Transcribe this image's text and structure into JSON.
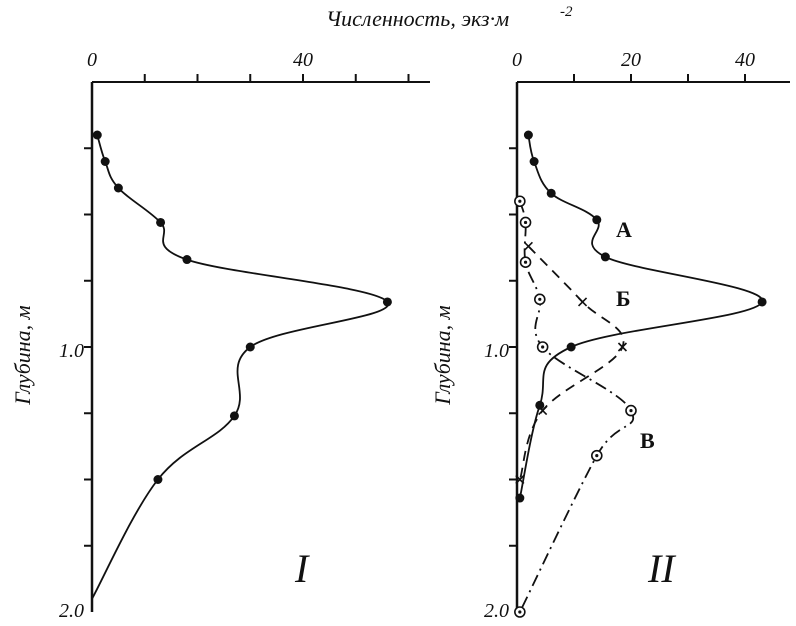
{
  "figure": {
    "top_label": "Численность, экз·м",
    "top_label_exponent": "-2",
    "ylabel": "Глубина, м"
  },
  "chart_data": [
    {
      "type": "line",
      "panel_label": "I",
      "xlabel": "Численность, экз·м-2",
      "ylabel": "Глубина, м",
      "xlim": [
        0,
        60
      ],
      "ylim": [
        0,
        2.0
      ],
      "x_ticks": [
        "0",
        "40"
      ],
      "y_ticks": [
        "1.0",
        "2.0"
      ],
      "series": [
        {
          "marker": "dot",
          "line": "solid",
          "points": [
            {
              "x": 1,
              "y": 0.2
            },
            {
              "x": 2.5,
              "y": 0.3
            },
            {
              "x": 5,
              "y": 0.4
            },
            {
              "x": 13,
              "y": 0.53
            },
            {
              "x": 18,
              "y": 0.67
            },
            {
              "x": 56,
              "y": 0.83
            },
            {
              "x": 30,
              "y": 1.0
            },
            {
              "x": 27,
              "y": 1.26
            },
            {
              "x": 12.5,
              "y": 1.5
            }
          ],
          "tail_end": {
            "x": 0,
            "y": 1.95
          }
        }
      ]
    },
    {
      "type": "line",
      "panel_label": "II",
      "xlabel": "Численность, экз·м-2",
      "ylabel": "Глубина, м",
      "xlim": [
        0,
        50
      ],
      "ylim": [
        0,
        2.0
      ],
      "x_ticks": [
        "0",
        "20",
        "40"
      ],
      "y_ticks": [
        "1.0",
        "2.0"
      ],
      "series": [
        {
          "name": "А",
          "marker": "dot",
          "line": "solid",
          "points": [
            {
              "x": 2,
              "y": 0.2
            },
            {
              "x": 3,
              "y": 0.3
            },
            {
              "x": 6,
              "y": 0.42
            },
            {
              "x": 14,
              "y": 0.52
            },
            {
              "x": 15.5,
              "y": 0.66
            },
            {
              "x": 43,
              "y": 0.83
            },
            {
              "x": 9.5,
              "y": 1.0
            },
            {
              "x": 4,
              "y": 1.22
            },
            {
              "x": 0.5,
              "y": 1.57
            }
          ]
        },
        {
          "name": "Б",
          "marker": "cross",
          "line": "dashed",
          "points": [
            {
              "x": 2,
              "y": 0.62
            },
            {
              "x": 11.5,
              "y": 0.83
            },
            {
              "x": 18.5,
              "y": 1.0
            },
            {
              "x": 4.5,
              "y": 1.24
            },
            {
              "x": 0.5,
              "y": 1.5
            }
          ]
        },
        {
          "name": "В",
          "marker": "circle-dot",
          "line": "dash-dot",
          "points": [
            {
              "x": 0.5,
              "y": 0.45
            },
            {
              "x": 1.5,
              "y": 0.53
            },
            {
              "x": 1.5,
              "y": 0.68
            },
            {
              "x": 4,
              "y": 0.82
            },
            {
              "x": 4.5,
              "y": 1.0
            },
            {
              "x": 20,
              "y": 1.24
            },
            {
              "x": 14,
              "y": 1.41
            },
            {
              "x": 0.5,
              "y": 2.0
            }
          ]
        }
      ]
    }
  ]
}
